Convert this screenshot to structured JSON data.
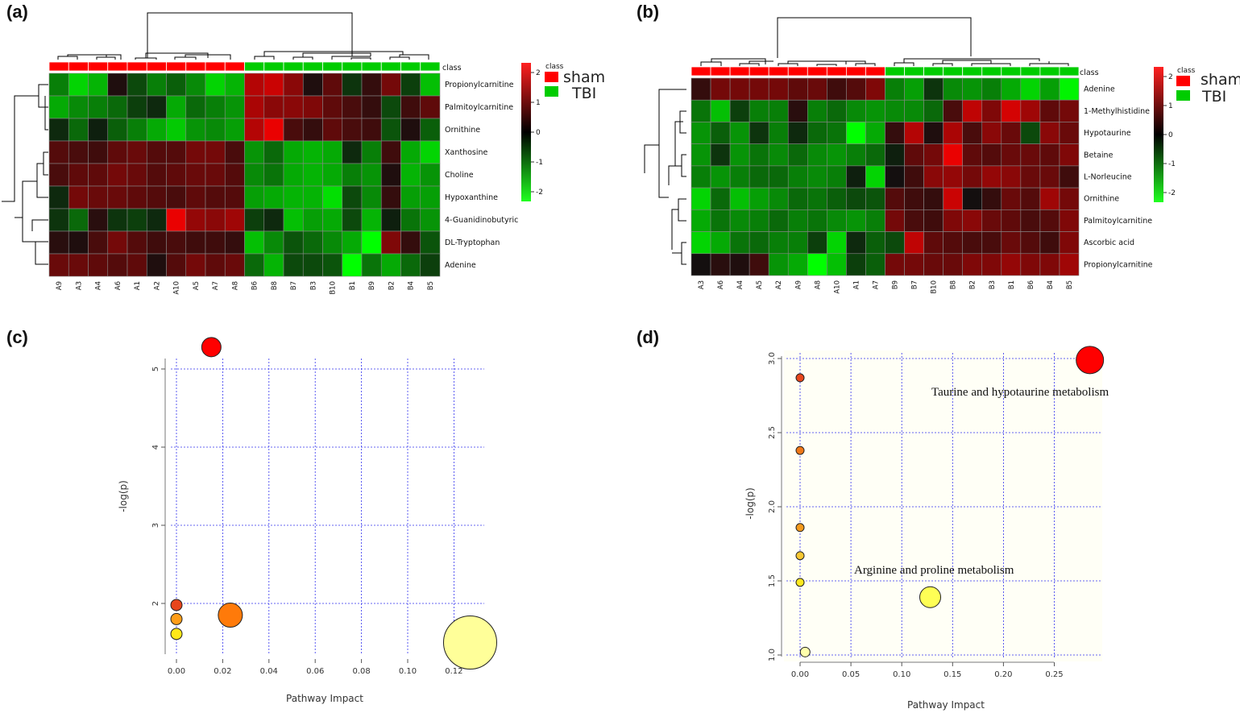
{
  "panels": {
    "a": "(a)",
    "b": "(b)",
    "c": "(c)",
    "d": "(d)"
  },
  "legend": {
    "class_title": "class",
    "sham": "sham",
    "tbi": "TBI",
    "sham_color": "#ff0000",
    "tbi_color": "#00cc00",
    "colorbar_ticks": [
      "2",
      "1",
      "0",
      "-1",
      "-2"
    ]
  },
  "chart_data": [
    {
      "id": "a",
      "type": "heatmap",
      "title": "",
      "class_label": "class",
      "columns": [
        "A9",
        "A3",
        "A4",
        "A6",
        "A1",
        "A2",
        "A10",
        "A5",
        "A7",
        "A8",
        "B6",
        "B8",
        "B7",
        "B3",
        "B10",
        "B1",
        "B9",
        "B2",
        "B4",
        "B5"
      ],
      "column_class": [
        "sham",
        "sham",
        "sham",
        "sham",
        "sham",
        "sham",
        "sham",
        "sham",
        "sham",
        "sham",
        "TBI",
        "TBI",
        "TBI",
        "TBI",
        "TBI",
        "TBI",
        "TBI",
        "TBI",
        "TBI",
        "TBI"
      ],
      "rows": [
        "Propionylcarnitine",
        "Palmitoylcarnitine",
        "Ornithine",
        "Xanthosine",
        "Choline",
        "Hypoxanthine",
        "4-Guanidinobutyric",
        "DL-Tryptophan",
        "Adenine"
      ],
      "values": [
        [
          -1.0,
          -1.8,
          -1.5,
          0.1,
          -0.5,
          -1.0,
          -0.7,
          -1.1,
          -1.8,
          -1.5,
          1.5,
          1.7,
          1.1,
          0.1,
          0.7,
          -0.3,
          0.3,
          0.9,
          -0.4,
          -1.6
        ],
        [
          -1.4,
          -1.1,
          -1.0,
          -0.8,
          -0.4,
          -0.2,
          -1.4,
          -0.8,
          -1.0,
          -1.2,
          1.4,
          1.1,
          1.1,
          1.0,
          0.7,
          0.5,
          0.3,
          -0.5,
          0.4,
          0.7
        ],
        [
          -0.2,
          -0.8,
          -0.1,
          -0.7,
          -1.0,
          -1.4,
          -1.7,
          -1.2,
          -1.1,
          -1.3,
          1.5,
          2.0,
          0.5,
          0.3,
          0.7,
          0.5,
          0.4,
          -0.6,
          0.1,
          -0.7
        ],
        [
          0.6,
          0.5,
          0.4,
          0.7,
          0.8,
          0.6,
          0.6,
          0.9,
          0.9,
          0.5,
          -1.2,
          -0.8,
          -1.4,
          -1.5,
          -1.4,
          -0.2,
          -1.0,
          0.4,
          -1.4,
          -1.8
        ],
        [
          0.5,
          0.7,
          0.7,
          0.9,
          0.8,
          0.6,
          0.7,
          0.8,
          0.8,
          0.6,
          -1.1,
          -0.9,
          -1.4,
          -1.5,
          -1.4,
          -1.0,
          -1.2,
          0.1,
          -1.5,
          -1.2
        ],
        [
          -0.2,
          0.9,
          0.8,
          0.8,
          0.7,
          0.6,
          0.5,
          0.7,
          0.6,
          0.6,
          -1.3,
          -1.4,
          -1.5,
          -1.5,
          -1.9,
          -0.5,
          -1.1,
          0.3,
          -1.3,
          -1.3
        ],
        [
          -0.3,
          -0.8,
          0.2,
          -0.3,
          -0.4,
          -0.2,
          2.0,
          1.2,
          1.1,
          1.3,
          -0.4,
          -0.2,
          -1.6,
          -1.3,
          -1.4,
          -0.5,
          -1.5,
          -0.1,
          -0.9,
          -1.2
        ],
        [
          0.2,
          0.1,
          0.5,
          0.9,
          0.6,
          0.4,
          0.5,
          0.4,
          0.4,
          0.3,
          -1.6,
          -1.1,
          -0.6,
          -0.8,
          -1.1,
          -1.4,
          -2.4,
          1.0,
          0.3,
          -0.6
        ],
        [
          0.8,
          0.8,
          0.7,
          0.6,
          0.7,
          0.1,
          0.6,
          0.9,
          0.7,
          0.8,
          -0.8,
          -1.5,
          -0.5,
          -0.5,
          -0.6,
          -2.2,
          -0.9,
          -1.4,
          -0.8,
          -0.4
        ]
      ]
    },
    {
      "id": "b",
      "type": "heatmap",
      "title": "",
      "class_label": "class",
      "columns": [
        "A3",
        "A6",
        "A4",
        "A5",
        "A2",
        "A9",
        "A8",
        "A10",
        "A1",
        "A7",
        "B9",
        "B7",
        "B10",
        "B8",
        "B2",
        "B3",
        "B1",
        "B6",
        "B4",
        "B5"
      ],
      "column_class": [
        "sham",
        "sham",
        "sham",
        "sham",
        "sham",
        "sham",
        "sham",
        "sham",
        "sham",
        "sham",
        "TBI",
        "TBI",
        "TBI",
        "TBI",
        "TBI",
        "TBI",
        "TBI",
        "TBI",
        "TBI",
        "TBI"
      ],
      "rows": [
        "Adenine",
        "1-Methylhistidine",
        "Hypotaurine",
        "Betaine",
        "L-Norleucine",
        "Ornithine",
        "Palmitoylcarnitine",
        "Ascorbic acid",
        "Propionylcarnitine"
      ],
      "values": [
        [
          0.3,
          0.9,
          0.9,
          0.9,
          0.9,
          0.7,
          0.8,
          0.4,
          0.6,
          1.0,
          -1.0,
          -1.3,
          -0.3,
          -1.1,
          -1.2,
          -1.0,
          -1.4,
          -1.8,
          -1.3,
          -2.1
        ],
        [
          -0.9,
          -1.6,
          -0.4,
          -1.0,
          -1.0,
          0.2,
          -1.0,
          -0.8,
          -1.1,
          -1.2,
          -1.1,
          -1.1,
          -0.8,
          0.5,
          1.6,
          1.0,
          1.8,
          1.3,
          0.7,
          0.9
        ],
        [
          -1.2,
          -0.7,
          -1.2,
          -0.3,
          -1.0,
          -0.2,
          -0.8,
          -0.9,
          -2.2,
          -1.4,
          0.3,
          1.5,
          0.1,
          1.4,
          0.5,
          1.1,
          0.8,
          -0.5,
          1.1,
          0.8
        ],
        [
          -1.2,
          -0.3,
          -1.2,
          -0.9,
          -1.1,
          -0.8,
          -1.1,
          -1.2,
          -1.0,
          -0.8,
          -0.1,
          0.7,
          0.9,
          2.0,
          0.7,
          0.6,
          0.8,
          0.8,
          0.7,
          1.0
        ],
        [
          -1.0,
          -1.2,
          -1.0,
          -0.8,
          -0.8,
          -1.0,
          -1.1,
          -1.0,
          -0.1,
          -1.8,
          0.0,
          0.4,
          1.1,
          1.2,
          0.9,
          1.2,
          1.1,
          0.8,
          0.8,
          0.4
        ],
        [
          -1.8,
          -0.8,
          -1.6,
          -1.3,
          -1.1,
          -0.8,
          -0.9,
          -0.7,
          -0.5,
          -0.6,
          0.6,
          0.4,
          0.3,
          1.7,
          0.0,
          0.3,
          0.8,
          0.6,
          1.3,
          0.9
        ],
        [
          -1.4,
          -0.9,
          -1.1,
          -1.0,
          -0.8,
          -1.0,
          -0.9,
          -1.1,
          -1.2,
          -1.0,
          0.9,
          0.5,
          0.4,
          1.0,
          1.1,
          0.8,
          0.7,
          0.5,
          0.6,
          1.0
        ],
        [
          -1.8,
          -1.4,
          -0.9,
          -0.8,
          -1.0,
          -1.0,
          -0.4,
          -1.8,
          -0.2,
          -0.7,
          -0.5,
          1.6,
          0.7,
          0.6,
          0.5,
          0.5,
          0.8,
          0.6,
          0.4,
          1.0
        ],
        [
          0.0,
          0.2,
          0.1,
          0.4,
          -1.2,
          -1.4,
          -2.2,
          -1.6,
          -0.4,
          -0.7,
          0.9,
          0.9,
          0.8,
          0.8,
          1.0,
          1.0,
          1.2,
          1.0,
          1.0,
          1.3
        ]
      ]
    },
    {
      "id": "c",
      "type": "scatter",
      "title": "",
      "xlabel": "Pathway Impact",
      "ylabel": "-log(p)",
      "xlim": [
        0,
        0.13
      ],
      "ylim": [
        1.5,
        5.3
      ],
      "xticks": [
        "0.00",
        "0.02",
        "0.04",
        "0.06",
        "0.08",
        "0.10",
        "0.12"
      ],
      "yticks": [
        "2",
        "3",
        "4",
        "5"
      ],
      "grid": true,
      "points": [
        {
          "x": 0.0151,
          "y": 5.28,
          "size": 12,
          "color": "#ff0000"
        },
        {
          "x": 0.0,
          "y": 1.98,
          "size": 7,
          "color": "#e8461c"
        },
        {
          "x": 0.0,
          "y": 1.8,
          "size": 7,
          "color": "#ff9d18"
        },
        {
          "x": 0.0,
          "y": 1.61,
          "size": 7,
          "color": "#ffe818"
        },
        {
          "x": 0.0233,
          "y": 1.85,
          "size": 15,
          "color": "#ff7a0a"
        },
        {
          "x": 0.127,
          "y": 1.5,
          "size": 33,
          "color": "#ffff99"
        }
      ]
    },
    {
      "id": "d",
      "type": "scatter",
      "title": "",
      "xlabel": "Pathway Impact",
      "ylabel": "-log(p)",
      "xlim": [
        0,
        0.29
      ],
      "ylim": [
        1.0,
        3.0
      ],
      "xticks": [
        "0.00",
        "0.05",
        "0.10",
        "0.15",
        "0.20",
        "0.25"
      ],
      "yticks": [
        "1.0",
        "1.5",
        "2.0",
        "2.5",
        "3.0"
      ],
      "grid": true,
      "points": [
        {
          "x": 0.285,
          "y": 2.99,
          "size": 17,
          "color": "#ff0000",
          "label": "Taurine and hypotaurine metabolism"
        },
        {
          "x": 0.0,
          "y": 2.87,
          "size": 5,
          "color": "#e8461c"
        },
        {
          "x": 0.0,
          "y": 2.38,
          "size": 5,
          "color": "#f07818"
        },
        {
          "x": 0.0,
          "y": 1.86,
          "size": 5,
          "color": "#f59a1c"
        },
        {
          "x": 0.0,
          "y": 1.67,
          "size": 5,
          "color": "#f8c830"
        },
        {
          "x": 0.0,
          "y": 1.49,
          "size": 5,
          "color": "#ffe820"
        },
        {
          "x": 0.128,
          "y": 1.39,
          "size": 13,
          "color": "#ffff55",
          "label": "Arginine and proline metabolism"
        },
        {
          "x": 0.005,
          "y": 1.02,
          "size": 6,
          "color": "#ffffaa"
        }
      ]
    }
  ]
}
